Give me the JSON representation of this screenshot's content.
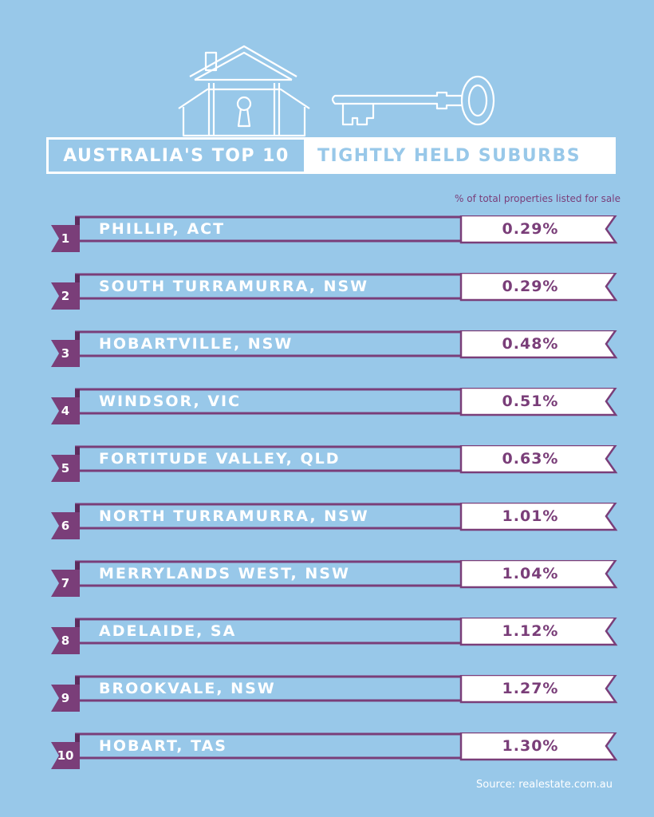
{
  "title": {
    "left": "AUSTRALIA'S TOP 10",
    "right": "TIGHTLY HELD SUBURBS"
  },
  "subtitle": "% of total properties listed for sale",
  "source": "Source: realestate.com.au",
  "colors": {
    "background": "#98c8e9",
    "accent": "#7a3e79",
    "white": "#ffffff"
  },
  "chart_data": {
    "type": "table",
    "columns": [
      "rank",
      "suburb",
      "percent_listed"
    ],
    "rows": [
      {
        "rank": "1",
        "suburb": "PHILLIP, ACT",
        "value": "0.29%"
      },
      {
        "rank": "2",
        "suburb": "SOUTH TURRAMURRA, NSW",
        "value": "0.29%"
      },
      {
        "rank": "3",
        "suburb": "HOBARTVILLE, NSW",
        "value": "0.48%"
      },
      {
        "rank": "4",
        "suburb": "WINDSOR, VIC",
        "value": "0.51%"
      },
      {
        "rank": "5",
        "suburb": "FORTITUDE VALLEY, QLD",
        "value": "0.63%"
      },
      {
        "rank": "6",
        "suburb": "NORTH TURRAMURRA, NSW",
        "value": "1.01%"
      },
      {
        "rank": "7",
        "suburb": "MERRYLANDS WEST, NSW",
        "value": "1.04%"
      },
      {
        "rank": "8",
        "suburb": "ADELAIDE, SA",
        "value": "1.12%"
      },
      {
        "rank": "9",
        "suburb": "BROOKVALE, NSW",
        "value": "1.27%"
      },
      {
        "rank": "10",
        "suburb": "HOBART, TAS",
        "value": "1.30%"
      }
    ]
  }
}
